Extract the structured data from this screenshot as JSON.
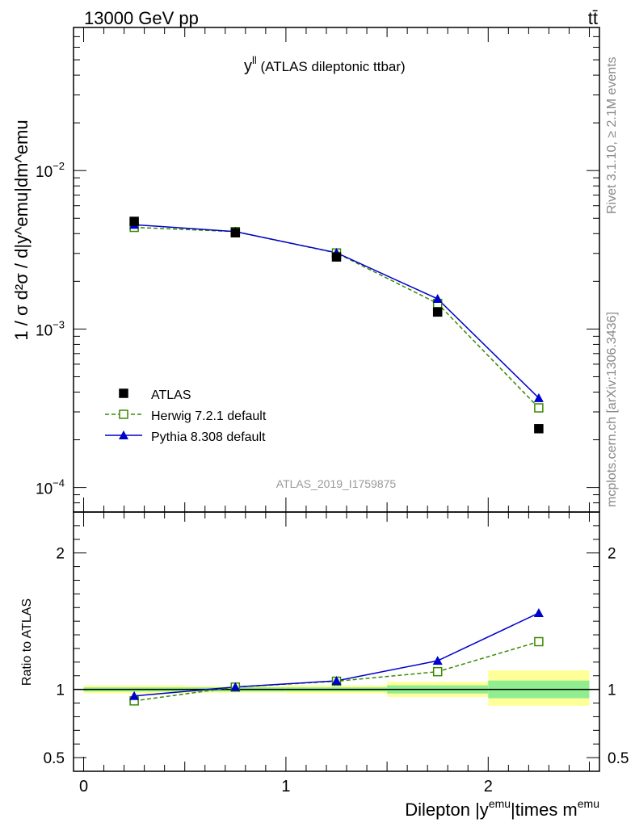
{
  "header": {
    "energy_label": "13000 GeV pp",
    "process_label": "tt̄"
  },
  "side_text": {
    "rivet": "Rivet 3.1.10, ≥ 2.1M events",
    "mcplots": "mcplots.cern.ch [arXiv:1306.3436]"
  },
  "analysis_id": "ATLAS_2019_I1759875",
  "colors": {
    "atlas": "#000000",
    "herwig": "#3a8a00",
    "pythia": "#0000cc",
    "band_inner": "#90ee90",
    "band_outer": "#ffff99"
  },
  "chart_data": [
    {
      "type": "scatter",
      "panel": "main",
      "title_main": "y",
      "title_sup": "ll",
      "title_rest": " (ATLAS dileptonic ttbar)",
      "ylabel": "1 / σ d²σ / d|y^emu|dm^emu",
      "yscale": "log",
      "ylim": [
        7e-05,
        0.08
      ],
      "xlim": [
        -0.05,
        2.55
      ],
      "ytick_labels": [
        {
          "value": 0.01,
          "base": "10",
          "exp": "−2"
        },
        {
          "value": 0.001,
          "base": "10",
          "exp": "−3"
        },
        {
          "value": 0.0001,
          "base": "10",
          "exp": "−4"
        }
      ],
      "x": [
        0.25,
        0.75,
        1.25,
        1.75,
        2.25
      ],
      "series": [
        {
          "name": "ATLAS",
          "values": [
            0.00478,
            0.00405,
            0.00285,
            0.00128,
            0.000235
          ]
        },
        {
          "name": "Herwig 7.2.1 default",
          "values": [
            0.00438,
            0.00412,
            0.00302,
            0.00145,
            0.000318
          ]
        },
        {
          "name": "Pythia 8.308 default",
          "values": [
            0.00455,
            0.00412,
            0.00303,
            0.00155,
            0.000367
          ]
        }
      ],
      "legend_position": "bottom-left"
    },
    {
      "type": "line",
      "panel": "ratio",
      "ylabel": "Ratio to ATLAS",
      "ylim": [
        0.4,
        2.3
      ],
      "yticks": [
        0.5,
        1,
        2
      ],
      "ytick_labels": [
        "0.5",
        "1",
        "2"
      ],
      "xlabel_main": "Dilepton |y",
      "xlabel_sup1": "emu",
      "xlabel_mid": "|times m",
      "xlabel_sup2": "emu",
      "xticks": [
        0,
        1,
        2
      ],
      "xtick_labels": [
        "0",
        "1",
        "2"
      ],
      "x": [
        0.25,
        0.75,
        1.25,
        1.75,
        2.25
      ],
      "series": [
        {
          "name": "Herwig 7.2.1 default",
          "values": [
            0.916,
            1.017,
            1.06,
            1.13,
            1.35
          ]
        },
        {
          "name": "Pythia 8.308 default",
          "values": [
            0.952,
            1.018,
            1.063,
            1.21,
            1.56
          ]
        }
      ],
      "bands": [
        {
          "x0": 0.0,
          "x1": 0.5,
          "inner": [
            0.985,
            1.015
          ],
          "outer": [
            0.97,
            1.03
          ]
        },
        {
          "x0": 0.5,
          "x1": 1.0,
          "inner": [
            0.985,
            1.015
          ],
          "outer": [
            0.975,
            1.025
          ]
        },
        {
          "x0": 1.0,
          "x1": 1.5,
          "inner": [
            0.985,
            1.015
          ],
          "outer": [
            0.97,
            1.03
          ]
        },
        {
          "x0": 1.5,
          "x1": 2.0,
          "inner": [
            0.97,
            1.03
          ],
          "outer": [
            0.945,
            1.055
          ]
        },
        {
          "x0": 2.0,
          "x1": 2.5,
          "inner": [
            0.935,
            1.065
          ],
          "outer": [
            0.88,
            1.14
          ]
        }
      ]
    }
  ]
}
